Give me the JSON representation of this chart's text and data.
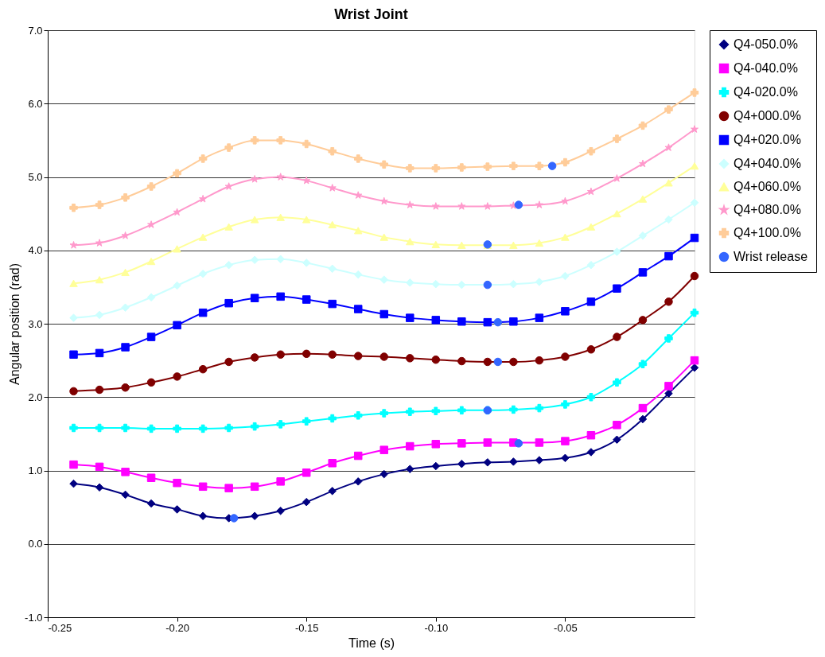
{
  "chart_data": {
    "type": "line",
    "title": "Wrist Joint",
    "xlabel": "Time (s)",
    "ylabel": "Angular position (rad)",
    "x": [
      -0.24,
      -0.23,
      -0.22,
      -0.21,
      -0.2,
      -0.19,
      -0.18,
      -0.17,
      -0.16,
      -0.15,
      -0.14,
      -0.13,
      -0.12,
      -0.11,
      -0.1,
      -0.09,
      -0.08,
      -0.07,
      -0.06,
      -0.05,
      -0.04,
      -0.03,
      -0.02,
      -0.01,
      0.0
    ],
    "series": [
      {
        "name": "Q4-050.0%",
        "color": "#000080",
        "marker": "diamond",
        "values": [
          0.82,
          0.77,
          0.67,
          0.55,
          0.47,
          0.38,
          0.35,
          0.38,
          0.45,
          0.57,
          0.72,
          0.85,
          0.95,
          1.02,
          1.06,
          1.09,
          1.11,
          1.12,
          1.14,
          1.17,
          1.25,
          1.42,
          1.7,
          2.05,
          2.4
        ]
      },
      {
        "name": "Q4-040.0%",
        "color": "#ff00ff",
        "marker": "square",
        "values": [
          1.08,
          1.05,
          0.98,
          0.9,
          0.83,
          0.78,
          0.76,
          0.78,
          0.85,
          0.97,
          1.1,
          1.2,
          1.28,
          1.33,
          1.36,
          1.37,
          1.38,
          1.38,
          1.38,
          1.4,
          1.48,
          1.62,
          1.85,
          2.15,
          2.5
        ]
      },
      {
        "name": "Q4-020.0%",
        "color": "#00ffff",
        "marker": "cross",
        "values": [
          1.58,
          1.58,
          1.58,
          1.57,
          1.57,
          1.57,
          1.58,
          1.6,
          1.63,
          1.67,
          1.71,
          1.75,
          1.78,
          1.8,
          1.81,
          1.82,
          1.82,
          1.83,
          1.85,
          1.9,
          2.0,
          2.2,
          2.45,
          2.8,
          3.15
        ]
      },
      {
        "name": "Q4+000.0%",
        "color": "#800000",
        "marker": "circle",
        "values": [
          2.08,
          2.1,
          2.13,
          2.2,
          2.28,
          2.38,
          2.48,
          2.54,
          2.58,
          2.59,
          2.58,
          2.56,
          2.55,
          2.53,
          2.51,
          2.49,
          2.48,
          2.48,
          2.5,
          2.55,
          2.65,
          2.82,
          3.05,
          3.3,
          3.65
        ]
      },
      {
        "name": "Q4+020.0%",
        "color": "#0000ff",
        "marker": "square",
        "values": [
          2.58,
          2.6,
          2.68,
          2.82,
          2.98,
          3.15,
          3.28,
          3.35,
          3.37,
          3.33,
          3.27,
          3.2,
          3.13,
          3.08,
          3.05,
          3.03,
          3.02,
          3.03,
          3.08,
          3.17,
          3.3,
          3.48,
          3.7,
          3.92,
          4.17
        ]
      },
      {
        "name": "Q4+040.0%",
        "color": "#ccffff",
        "marker": "diamond",
        "values": [
          3.08,
          3.12,
          3.22,
          3.36,
          3.52,
          3.68,
          3.8,
          3.87,
          3.88,
          3.83,
          3.75,
          3.67,
          3.6,
          3.56,
          3.54,
          3.53,
          3.53,
          3.54,
          3.57,
          3.65,
          3.8,
          3.98,
          4.2,
          4.42,
          4.65
        ]
      },
      {
        "name": "Q4+060.0%",
        "color": "#ffff99",
        "marker": "triangle",
        "values": [
          3.55,
          3.6,
          3.7,
          3.85,
          4.02,
          4.18,
          4.32,
          4.42,
          4.45,
          4.42,
          4.35,
          4.27,
          4.18,
          4.12,
          4.08,
          4.07,
          4.07,
          4.07,
          4.1,
          4.18,
          4.32,
          4.5,
          4.7,
          4.92,
          5.15
        ]
      },
      {
        "name": "Q4+080.0%",
        "color": "#ff99cc",
        "marker": "star",
        "values": [
          4.07,
          4.1,
          4.2,
          4.35,
          4.52,
          4.7,
          4.87,
          4.97,
          5.0,
          4.95,
          4.85,
          4.75,
          4.67,
          4.62,
          4.6,
          4.6,
          4.6,
          4.61,
          4.62,
          4.67,
          4.8,
          4.98,
          5.18,
          5.4,
          5.65
        ]
      },
      {
        "name": "Q4+100.0%",
        "color": "#ffcc99",
        "marker": "cross",
        "values": [
          4.58,
          4.62,
          4.72,
          4.87,
          5.05,
          5.25,
          5.4,
          5.5,
          5.5,
          5.45,
          5.35,
          5.25,
          5.17,
          5.12,
          5.12,
          5.13,
          5.14,
          5.15,
          5.15,
          5.2,
          5.35,
          5.52,
          5.7,
          5.92,
          6.15
        ]
      },
      {
        "name": "Wrist release",
        "type": "scatter",
        "color": "#3366ff",
        "marker": "circle",
        "x": [
          -0.178,
          -0.068,
          -0.08,
          -0.076,
          -0.076,
          -0.08,
          -0.08,
          -0.068,
          -0.055
        ],
        "values": [
          0.35,
          1.37,
          1.82,
          2.48,
          3.02,
          3.53,
          4.08,
          4.62,
          5.15
        ]
      }
    ],
    "xlim": [
      -0.25,
      0.0
    ],
    "xticks": [
      -0.25,
      {
        "value": -0.2,
        "label": "-0.20"
      },
      -0.15,
      {
        "value": -0.1,
        "label": "-0.10"
      },
      -0.05
    ],
    "ylim": [
      -1,
      7
    ],
    "yticks": [
      {
        "value": -1,
        "label": "-1.0"
      },
      {
        "value": 0,
        "label": "0.0"
      },
      {
        "value": 1,
        "label": "1.0"
      },
      {
        "value": 2,
        "label": "2.0"
      },
      {
        "value": 3,
        "label": "3.0"
      },
      {
        "value": 4,
        "label": "4.0"
      },
      {
        "value": 5,
        "label": "5.0"
      },
      {
        "value": 6,
        "label": "6.0"
      },
      {
        "value": 7,
        "label": "7.0"
      }
    ],
    "grid": "y",
    "legend": "right"
  }
}
